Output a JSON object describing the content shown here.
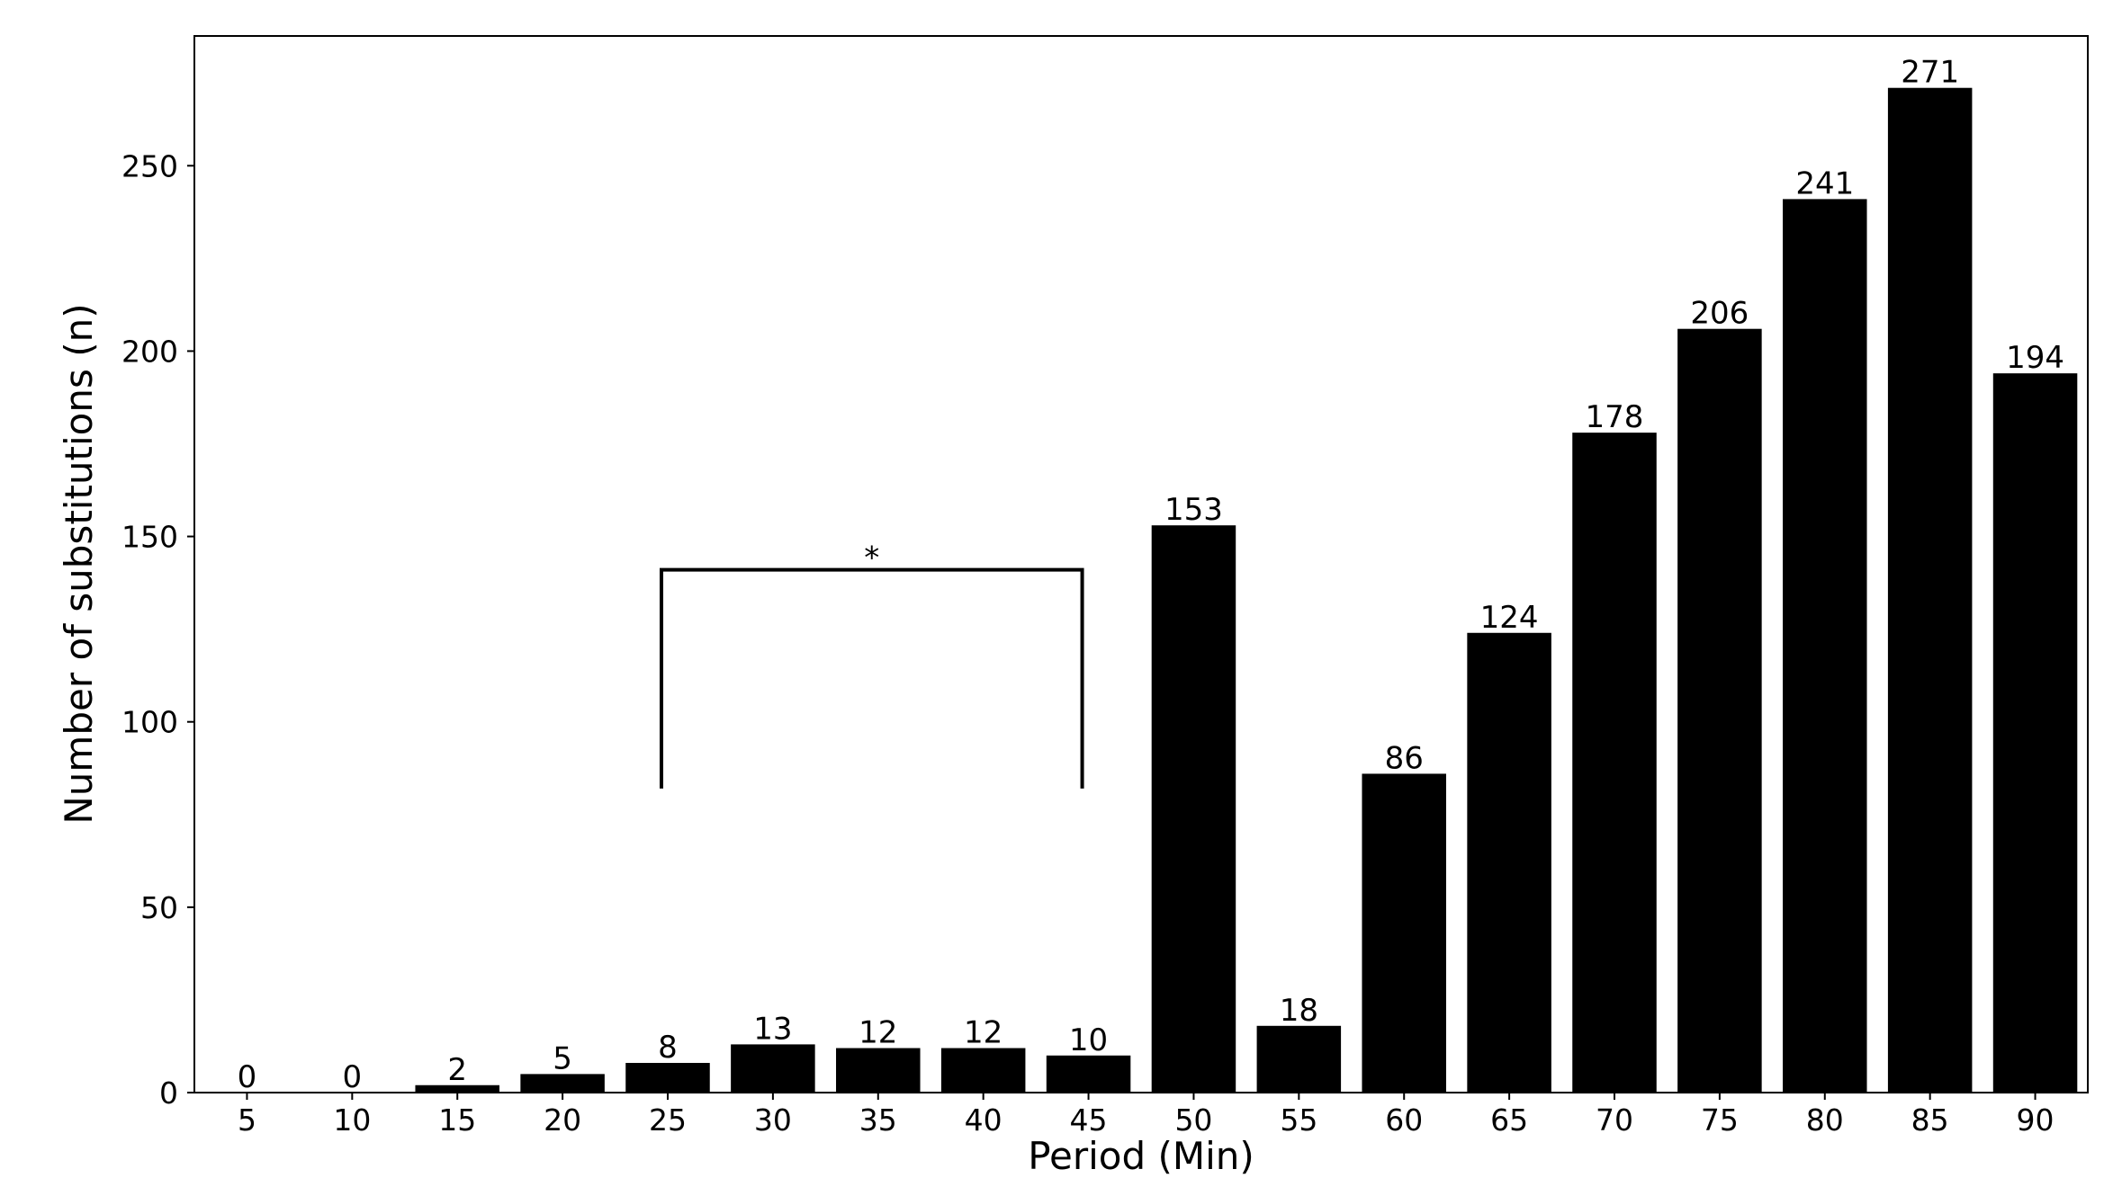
{
  "chart_data": {
    "type": "bar",
    "title": "",
    "xlabel": "Period (Min)",
    "ylabel": "Number of substitutions (n)",
    "categories": [
      "5",
      "10",
      "15",
      "20",
      "25",
      "30",
      "35",
      "40",
      "45",
      "50",
      "55",
      "60",
      "65",
      "70",
      "75",
      "80",
      "85",
      "90"
    ],
    "values": [
      0,
      0,
      2,
      5,
      8,
      13,
      12,
      12,
      10,
      153,
      18,
      86,
      124,
      178,
      206,
      241,
      271,
      194
    ],
    "ylim": [
      0,
      285
    ],
    "yticks": [
      0,
      50,
      100,
      150,
      200,
      250
    ],
    "bar_color": "#000000",
    "grid": false,
    "legend": "none",
    "annotations": [
      {
        "text": "*",
        "from_category": "25",
        "to_category": "45",
        "bracket_y": 141,
        "leg_bottom_y": 82
      }
    ]
  }
}
